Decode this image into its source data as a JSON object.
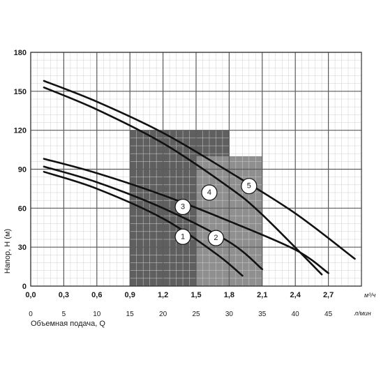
{
  "chart_data": {
    "type": "line",
    "xlabel": "Объемная подача, Q",
    "ylabel": "Напор, H (м)",
    "x_unit_primary": "м³/ч",
    "x_unit_secondary": "л/мин",
    "xlim": [
      0,
      50
    ],
    "ylim": [
      0,
      180
    ],
    "y_ticks": [
      "0",
      "30",
      "60",
      "90",
      "120",
      "150",
      "180"
    ],
    "x_ticks_m3h": [
      "0,0",
      "0,3",
      "0,6",
      "0,9",
      "1,2",
      "1,5",
      "1,8",
      "2,1",
      "2,4",
      "2,7"
    ],
    "x_ticks_lmin": [
      "0",
      "5",
      "10",
      "15",
      "20",
      "25",
      "30",
      "35",
      "40",
      "45"
    ],
    "grid": true,
    "zones": [
      {
        "series": "1",
        "x_range": [
          15,
          20
        ],
        "y_max": 60,
        "color": "#d4d4d4"
      },
      {
        "series": "2",
        "x_range": [
          20,
          25
        ],
        "y_max": 60,
        "color": "#d4d4d4"
      },
      {
        "series": "3",
        "x_range": [
          15,
          25
        ],
        "y_max": 70,
        "color": "#a6a6a6"
      },
      {
        "series": "4",
        "x_range": [
          15,
          30
        ],
        "y_max": 120,
        "color": "#5f5f5f"
      },
      {
        "series": "5",
        "x_range": [
          25,
          35
        ],
        "y_max": 100,
        "color": "#8f8f8f"
      }
    ],
    "series": [
      {
        "name": "1",
        "x": [
          2,
          10,
          20,
          28,
          32
        ],
        "y": [
          88,
          75,
          52,
          25,
          8
        ],
        "label_at": [
          23,
          38
        ]
      },
      {
        "name": "2",
        "x": [
          2,
          10,
          20,
          30,
          35
        ],
        "y": [
          92,
          80,
          60,
          34,
          13
        ],
        "label_at": [
          28,
          37
        ]
      },
      {
        "name": "3",
        "x": [
          2,
          10,
          20,
          30,
          40,
          45
        ],
        "y": [
          98,
          87,
          70,
          50,
          28,
          10
        ],
        "label_at": [
          23,
          61
        ]
      },
      {
        "name": "4",
        "x": [
          2,
          10,
          20,
          30,
          35,
          44
        ],
        "y": [
          153,
          136,
          110,
          76,
          55,
          9
        ],
        "label_at": [
          27,
          72
        ]
      },
      {
        "name": "5",
        "x": [
          2,
          10,
          20,
          30,
          40,
          49
        ],
        "y": [
          158,
          142,
          118,
          88,
          56,
          21
        ],
        "label_at": [
          33,
          77
        ]
      }
    ]
  }
}
